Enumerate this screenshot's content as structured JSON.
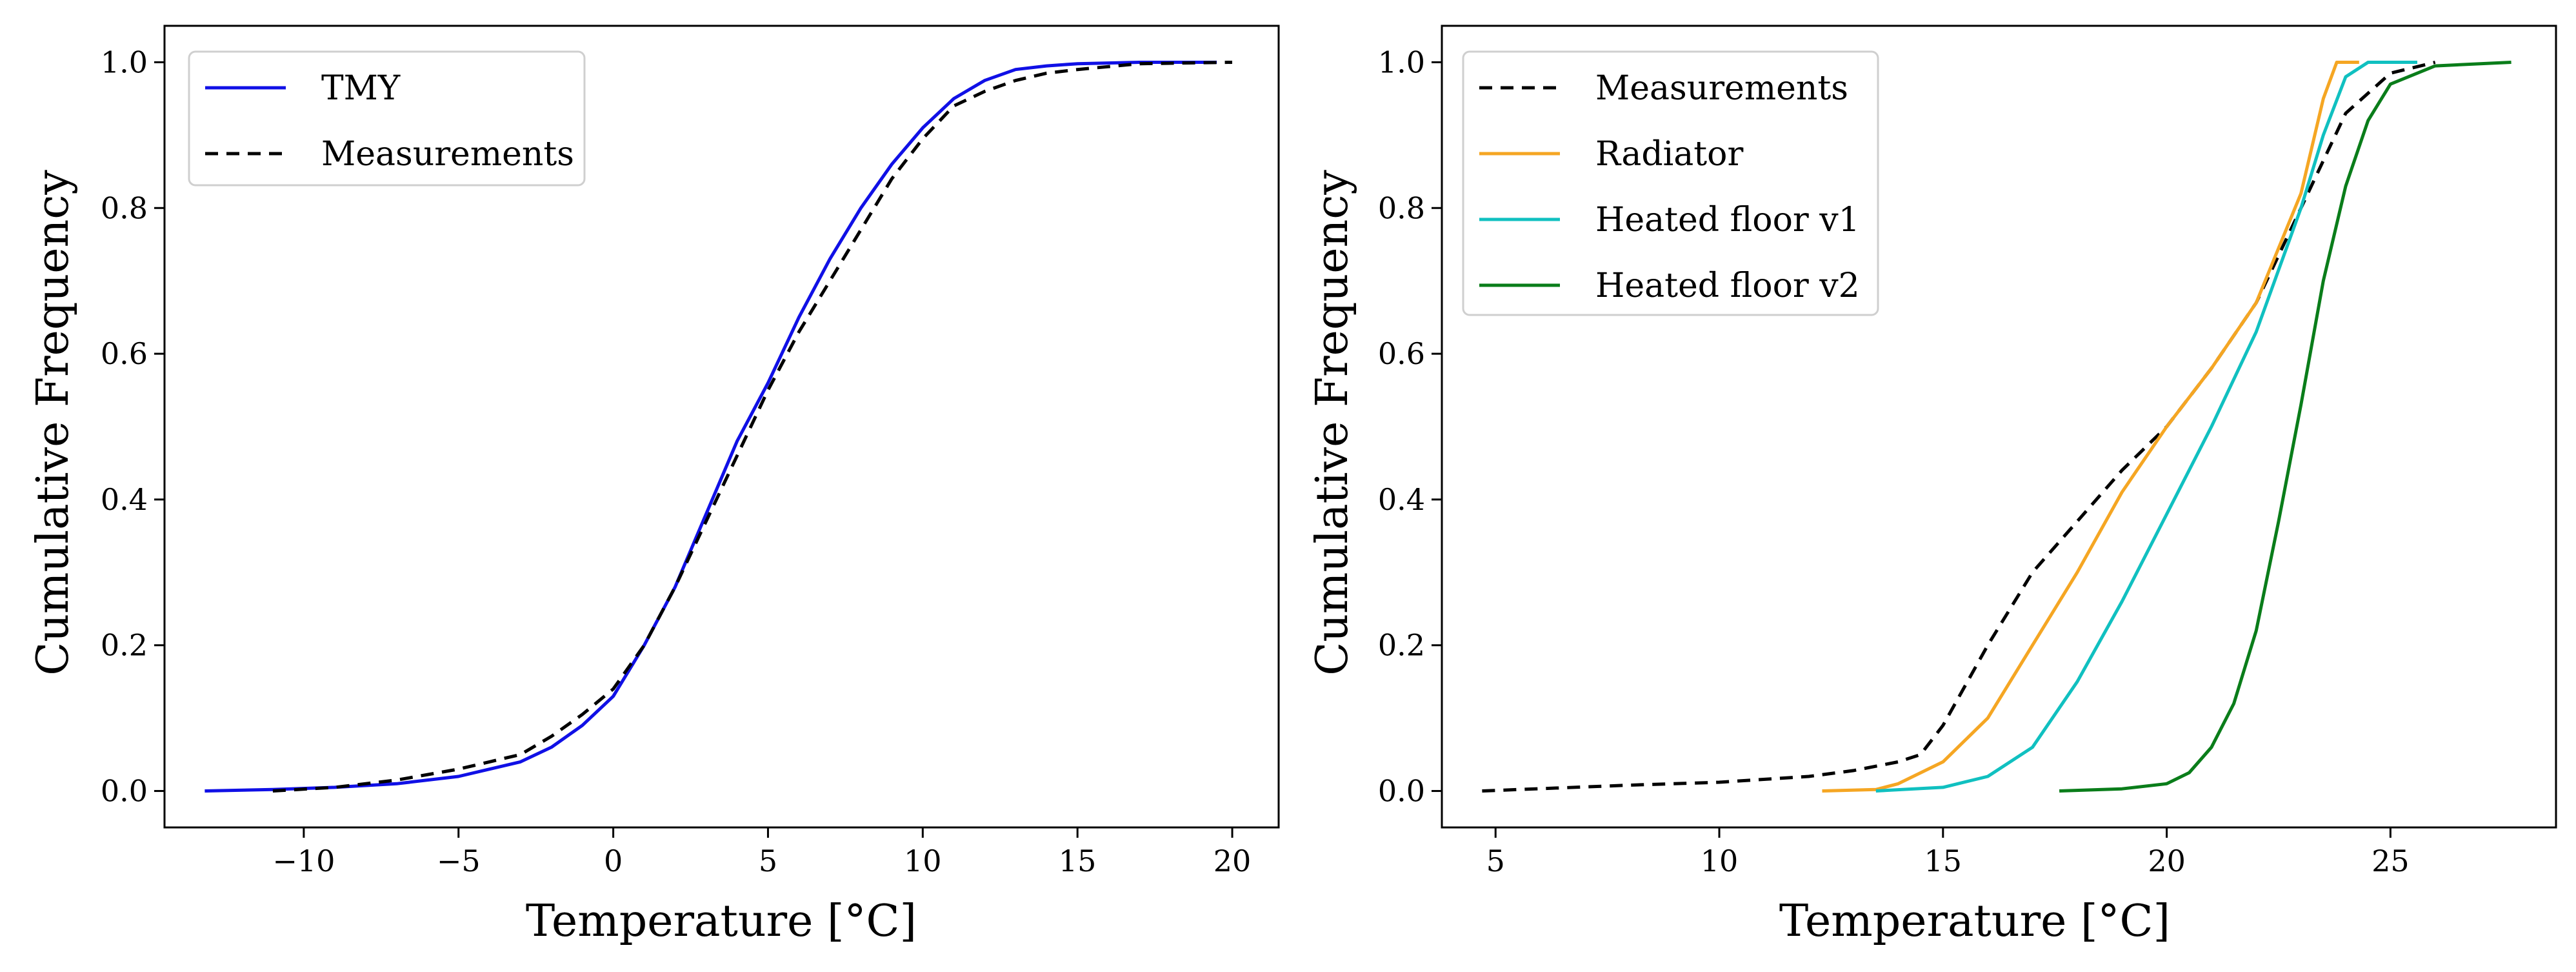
{
  "chart_data": [
    {
      "type": "line",
      "xlabel": "Temperature [°C]",
      "ylabel": "Cumulative Frequency",
      "xlim": [
        -14.5,
        21.5
      ],
      "ylim": [
        -0.05,
        1.05
      ],
      "xticks": [
        -10,
        -5,
        0,
        5,
        10,
        15,
        20
      ],
      "xtick_labels": [
        "−10",
        "−5",
        "0",
        "5",
        "10",
        "15",
        "20"
      ],
      "yticks": [
        0.0,
        0.2,
        0.4,
        0.6,
        0.8,
        1.0
      ],
      "ytick_labels": [
        "0.0",
        "0.2",
        "0.4",
        "0.6",
        "0.8",
        "1.0"
      ],
      "legend_position": "top-left",
      "series": [
        {
          "name": "TMY",
          "color": "#1010e6",
          "style": "solid",
          "points": [
            [
              -13.2,
              0.0
            ],
            [
              -11,
              0.002
            ],
            [
              -9,
              0.005
            ],
            [
              -7,
              0.01
            ],
            [
              -5,
              0.02
            ],
            [
              -4,
              0.03
            ],
            [
              -3,
              0.04
            ],
            [
              -2,
              0.06
            ],
            [
              -1,
              0.09
            ],
            [
              0,
              0.13
            ],
            [
              1,
              0.2
            ],
            [
              2,
              0.28
            ],
            [
              3,
              0.38
            ],
            [
              4,
              0.48
            ],
            [
              5,
              0.56
            ],
            [
              6,
              0.65
            ],
            [
              7,
              0.73
            ],
            [
              8,
              0.8
            ],
            [
              9,
              0.86
            ],
            [
              10,
              0.91
            ],
            [
              11,
              0.95
            ],
            [
              12,
              0.975
            ],
            [
              13,
              0.99
            ],
            [
              14,
              0.995
            ],
            [
              15,
              0.998
            ],
            [
              17,
              1.0
            ],
            [
              19.5,
              1.0
            ]
          ]
        },
        {
          "name": "Measurements",
          "color": "#000000",
          "style": "dashed",
          "points": [
            [
              -11,
              0.0
            ],
            [
              -9,
              0.005
            ],
            [
              -7,
              0.015
            ],
            [
              -5,
              0.03
            ],
            [
              -3,
              0.05
            ],
            [
              -2,
              0.075
            ],
            [
              -1,
              0.105
            ],
            [
              0,
              0.14
            ],
            [
              1,
              0.2
            ],
            [
              2,
              0.28
            ],
            [
              3,
              0.37
            ],
            [
              4,
              0.46
            ],
            [
              5,
              0.55
            ],
            [
              6,
              0.63
            ],
            [
              7,
              0.7
            ],
            [
              8,
              0.77
            ],
            [
              9,
              0.84
            ],
            [
              10,
              0.895
            ],
            [
              11,
              0.94
            ],
            [
              12,
              0.96
            ],
            [
              13,
              0.975
            ],
            [
              14,
              0.985
            ],
            [
              15,
              0.99
            ],
            [
              17,
              0.998
            ],
            [
              20,
              1.0
            ]
          ]
        }
      ]
    },
    {
      "type": "line",
      "xlabel": "Temperature [°C]",
      "ylabel": "Cumulative Frequency",
      "xlim": [
        3.8,
        28.7
      ],
      "ylim": [
        -0.05,
        1.05
      ],
      "xticks": [
        5,
        10,
        15,
        20,
        25
      ],
      "xtick_labels": [
        "5",
        "10",
        "15",
        "20",
        "25"
      ],
      "yticks": [
        0.0,
        0.2,
        0.4,
        0.6,
        0.8,
        1.0
      ],
      "ytick_labels": [
        "0.0",
        "0.2",
        "0.4",
        "0.6",
        "0.8",
        "1.0"
      ],
      "legend_position": "top-left",
      "series": [
        {
          "name": "Measurements",
          "color": "#000000",
          "style": "dashed",
          "points": [
            [
              4.7,
              0.0
            ],
            [
              8,
              0.008
            ],
            [
              10,
              0.012
            ],
            [
              12,
              0.02
            ],
            [
              13,
              0.028
            ],
            [
              14,
              0.04
            ],
            [
              14.5,
              0.05
            ],
            [
              15,
              0.09
            ],
            [
              16,
              0.2
            ],
            [
              17,
              0.3
            ],
            [
              18,
              0.37
            ],
            [
              19,
              0.44
            ],
            [
              20,
              0.5
            ],
            [
              21,
              0.58
            ],
            [
              22,
              0.67
            ],
            [
              23,
              0.8
            ],
            [
              24,
              0.93
            ],
            [
              25,
              0.985
            ],
            [
              26,
              1.0
            ]
          ]
        },
        {
          "name": "Radiator",
          "color": "#f5a623",
          "style": "solid",
          "points": [
            [
              12.3,
              0.0
            ],
            [
              13.5,
              0.002
            ],
            [
              14,
              0.01
            ],
            [
              15,
              0.04
            ],
            [
              16,
              0.1
            ],
            [
              17,
              0.2
            ],
            [
              18,
              0.3
            ],
            [
              19,
              0.41
            ],
            [
              20,
              0.5
            ],
            [
              21,
              0.58
            ],
            [
              22,
              0.67
            ],
            [
              23,
              0.82
            ],
            [
              23.5,
              0.95
            ],
            [
              23.8,
              1.0
            ],
            [
              24.3,
              1.0
            ]
          ]
        },
        {
          "name": "Heated floor v1",
          "color": "#10c0c0",
          "style": "solid",
          "points": [
            [
              13.5,
              0.0
            ],
            [
              15,
              0.005
            ],
            [
              16,
              0.02
            ],
            [
              17,
              0.06
            ],
            [
              18,
              0.15
            ],
            [
              19,
              0.26
            ],
            [
              20,
              0.38
            ],
            [
              21,
              0.5
            ],
            [
              22,
              0.63
            ],
            [
              23,
              0.8
            ],
            [
              23.5,
              0.9
            ],
            [
              24,
              0.98
            ],
            [
              24.5,
              1.0
            ],
            [
              25.6,
              1.0
            ]
          ]
        },
        {
          "name": "Heated floor v2",
          "color": "#0a7d1a",
          "style": "solid",
          "points": [
            [
              17.6,
              0.0
            ],
            [
              19,
              0.003
            ],
            [
              20,
              0.01
            ],
            [
              20.5,
              0.025
            ],
            [
              21,
              0.06
            ],
            [
              21.5,
              0.12
            ],
            [
              22,
              0.22
            ],
            [
              22.5,
              0.37
            ],
            [
              23,
              0.53
            ],
            [
              23.5,
              0.7
            ],
            [
              24,
              0.83
            ],
            [
              24.5,
              0.92
            ],
            [
              25,
              0.97
            ],
            [
              26,
              0.995
            ],
            [
              27.7,
              1.0
            ]
          ]
        }
      ]
    }
  ]
}
